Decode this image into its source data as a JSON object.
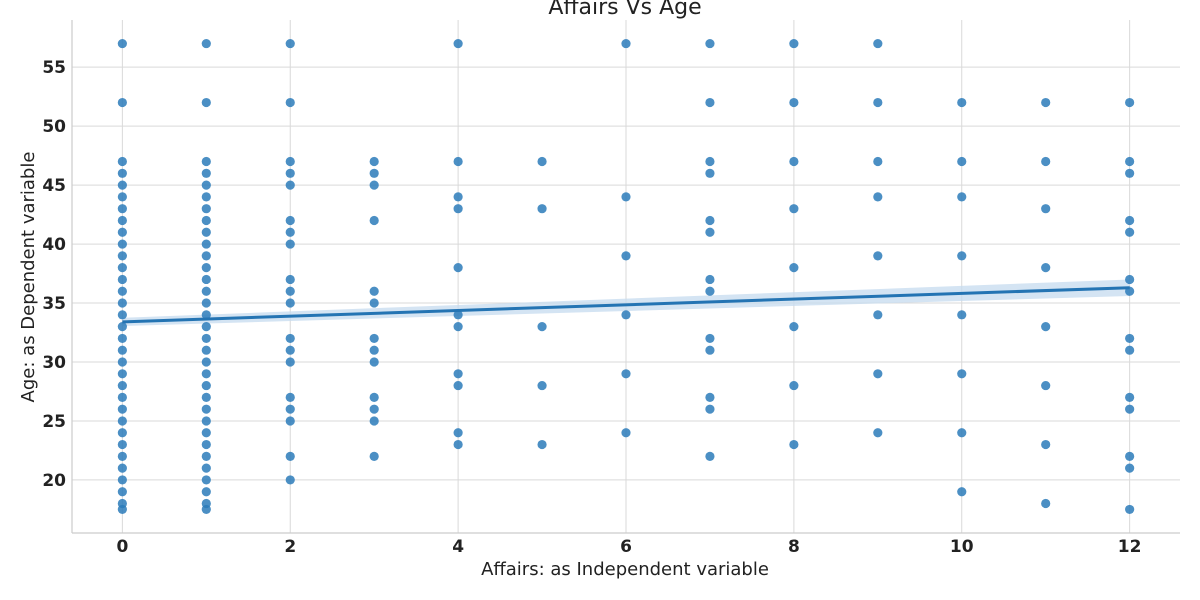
{
  "chart_data": {
    "type": "scatter",
    "title": "Affairs Vs Age",
    "xlabel": "Affairs: as Independent variable",
    "ylabel": "Age: as Dependent variable",
    "xlim": [
      -0.6,
      12.6
    ],
    "ylim": [
      15.5,
      59
    ],
    "x_ticks": [
      0,
      2,
      4,
      6,
      8,
      10,
      12
    ],
    "y_ticks": [
      20,
      25,
      30,
      35,
      40,
      45,
      50,
      55
    ],
    "grid": true,
    "colors": {
      "points": "#2b7bba",
      "line": "#2474b3",
      "band": "#c6dbef"
    },
    "points_by_x": [
      {
        "x": 0,
        "y": [
          17.5,
          18,
          19,
          20,
          21,
          22,
          23,
          24,
          25,
          26,
          27,
          28,
          29,
          30,
          31,
          32,
          33,
          34,
          35,
          36,
          37,
          38,
          39,
          40,
          41,
          42,
          43,
          44,
          45,
          46,
          47,
          52,
          57
        ]
      },
      {
        "x": 1,
        "y": [
          17.5,
          18,
          19,
          20,
          21,
          22,
          23,
          24,
          25,
          26,
          27,
          28,
          29,
          30,
          31,
          32,
          33,
          34,
          35,
          36,
          37,
          38,
          39,
          40,
          41,
          42,
          43,
          44,
          45,
          46,
          47,
          52,
          57
        ]
      },
      {
        "x": 2,
        "y": [
          20,
          22,
          25,
          26,
          27,
          30,
          31,
          32,
          35,
          36,
          37,
          40,
          41,
          42,
          45,
          46,
          47,
          52,
          57
        ]
      },
      {
        "x": 3,
        "y": [
          22,
          25,
          26,
          27,
          30,
          31,
          32,
          35,
          36,
          42,
          45,
          46,
          47
        ]
      },
      {
        "x": 4,
        "y": [
          23,
          24,
          28,
          29,
          33,
          34,
          38,
          43,
          44,
          47,
          57
        ]
      },
      {
        "x": 5,
        "y": [
          23,
          28,
          33,
          43,
          47
        ]
      },
      {
        "x": 6,
        "y": [
          24,
          29,
          34,
          39,
          44,
          57
        ]
      },
      {
        "x": 7,
        "y": [
          22,
          26,
          27,
          31,
          32,
          36,
          37,
          41,
          42,
          46,
          47,
          52,
          57
        ]
      },
      {
        "x": 8,
        "y": [
          23,
          28,
          33,
          38,
          43,
          47,
          52,
          57
        ]
      },
      {
        "x": 9,
        "y": [
          24,
          29,
          34,
          39,
          44,
          47,
          52,
          57
        ]
      },
      {
        "x": 10,
        "y": [
          19,
          24,
          29,
          34,
          39,
          44,
          47,
          52
        ]
      },
      {
        "x": 11,
        "y": [
          18,
          23,
          28,
          33,
          38,
          43,
          47,
          52
        ]
      },
      {
        "x": 12,
        "y": [
          17.5,
          21,
          22,
          26,
          27,
          31,
          32,
          36,
          37,
          41,
          42,
          46,
          47,
          52
        ]
      }
    ],
    "regression": {
      "x": [
        0,
        12
      ],
      "y": [
        33.4,
        36.3
      ],
      "ci_halfwidth": [
        0.35,
        0.7
      ]
    }
  }
}
